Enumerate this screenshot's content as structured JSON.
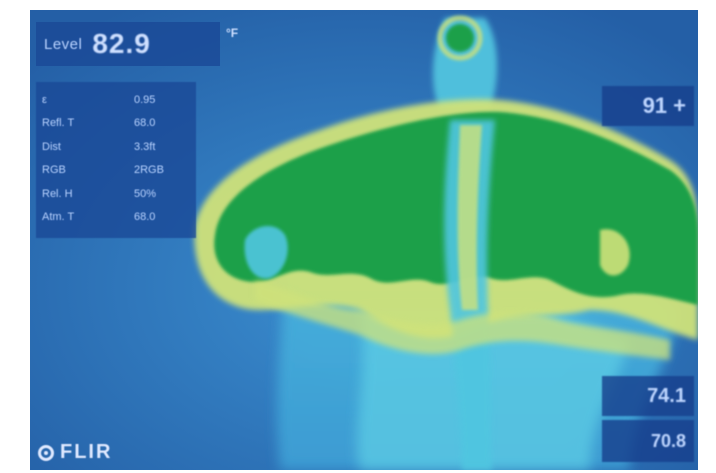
{
  "camera": {
    "brand": "FLIR",
    "level_label": "Level",
    "level_value": "82.9",
    "level_unit": "°F"
  },
  "parameters": [
    {
      "name": "ε",
      "value": "0.95"
    },
    {
      "name": "Refl. T",
      "value": "68.0"
    },
    {
      "name": "Dist",
      "value": "3.3ft"
    },
    {
      "name": "RGB",
      "value": "2RGB"
    },
    {
      "name": "Rel. H",
      "value": "50%"
    },
    {
      "name": "Atm. T",
      "value": "68.0"
    }
  ],
  "readouts": {
    "top_right": "91 +",
    "bottom_right_1": "74.1",
    "bottom_right_2": "70.8"
  },
  "colors": {
    "background": "#2a6fb0",
    "cool": "#3f9ad8",
    "cyan": "#4fc6e0",
    "warm_yellow": "#cfe27a",
    "hot_green": "#1ea04a"
  }
}
